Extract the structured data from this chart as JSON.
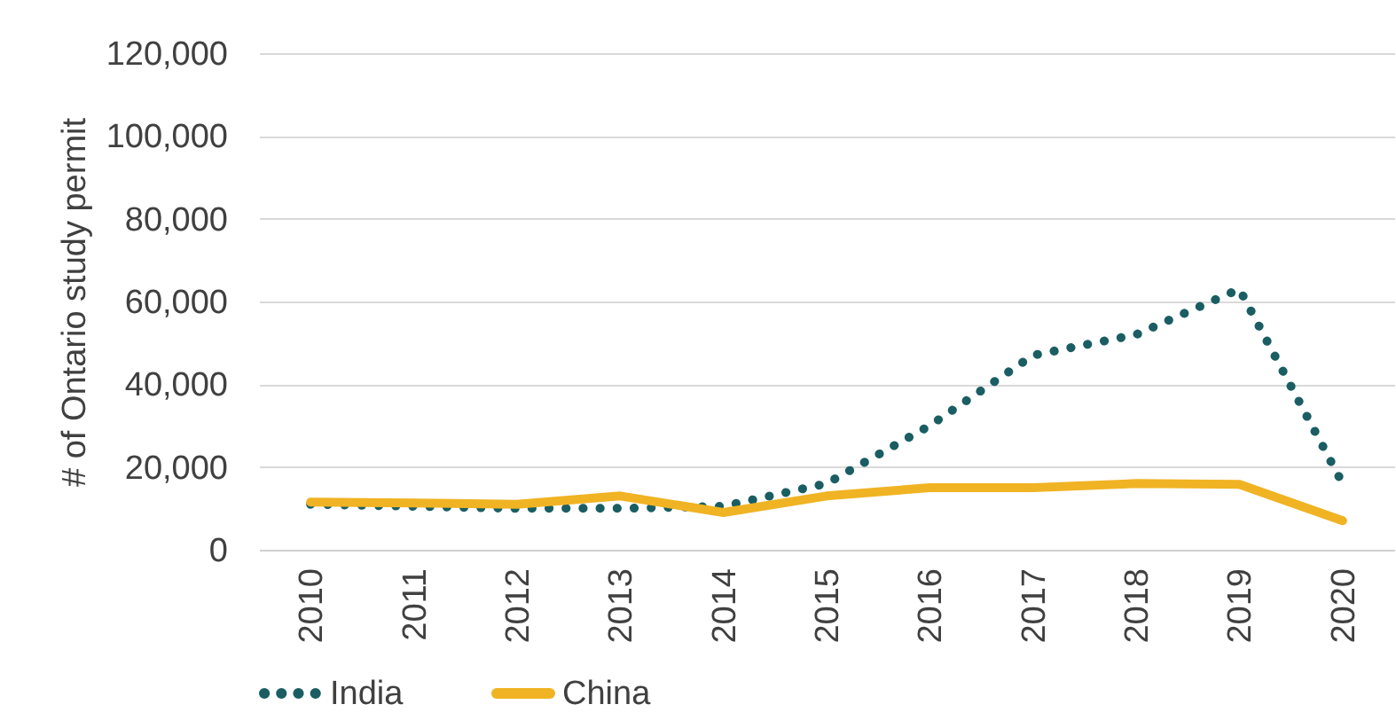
{
  "chart_data": {
    "type": "line",
    "ylabel": "# of Ontario study permit",
    "categories": [
      "2010",
      "2011",
      "2012",
      "2013",
      "2014",
      "2015",
      "2016",
      "2017",
      "2018",
      "2019",
      "2020"
    ],
    "series": [
      {
        "name": "India",
        "color": "#1a5e63",
        "line_style": "dotted",
        "values": [
          11000,
          10500,
          10000,
          10000,
          10500,
          16000,
          30000,
          47000,
          52000,
          63000,
          16000
        ]
      },
      {
        "name": "China",
        "color": "#f0b323",
        "line_style": "solid",
        "values": [
          11500,
          11300,
          11000,
          13000,
          9000,
          13000,
          15000,
          15000,
          16000,
          15800,
          7000
        ]
      }
    ],
    "ylim": [
      0,
      120000
    ],
    "yticks": [
      0,
      {
        "value": 20000,
        "label": "20,000"
      },
      {
        "value": 40000,
        "label": "40,000"
      },
      {
        "value": 60000,
        "label": "60,000"
      },
      {
        "value": 80000,
        "label": "80,000"
      },
      {
        "value": 100000,
        "label": "100,000"
      },
      {
        "value": 120000,
        "label": "120,000"
      }
    ],
    "grid": "y",
    "legend": "bottom"
  }
}
